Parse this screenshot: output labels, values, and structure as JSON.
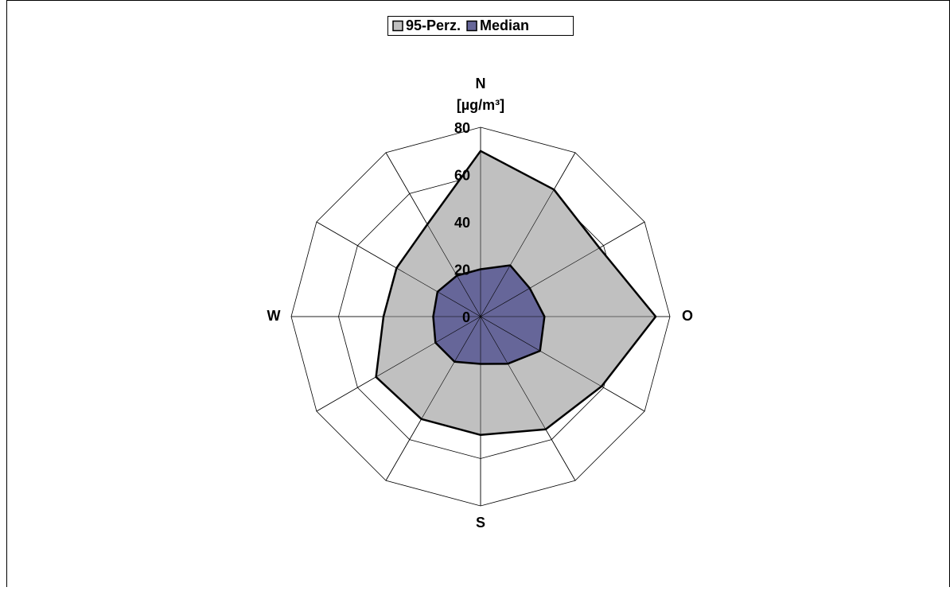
{
  "chart_data": {
    "type": "radar",
    "categories": [
      "N",
      null,
      null,
      "O",
      null,
      null,
      "S",
      null,
      null,
      "W",
      null,
      null
    ],
    "y_label": "[µg/m³]",
    "series": [
      {
        "name": "95-Perz.",
        "color": "#c0c0c0",
        "values": [
          70,
          62,
          58,
          74,
          59,
          55,
          50,
          50,
          51,
          41,
          41,
          45
        ]
      },
      {
        "name": "Median",
        "color": "#666699",
        "values": [
          20,
          25,
          24,
          27,
          29,
          23,
          20,
          22,
          22,
          20,
          21,
          20
        ]
      }
    ],
    "ylim": [
      0,
      80
    ],
    "yticks": [
      0,
      20,
      40,
      60,
      80
    ],
    "grid": true,
    "legend": "top"
  }
}
